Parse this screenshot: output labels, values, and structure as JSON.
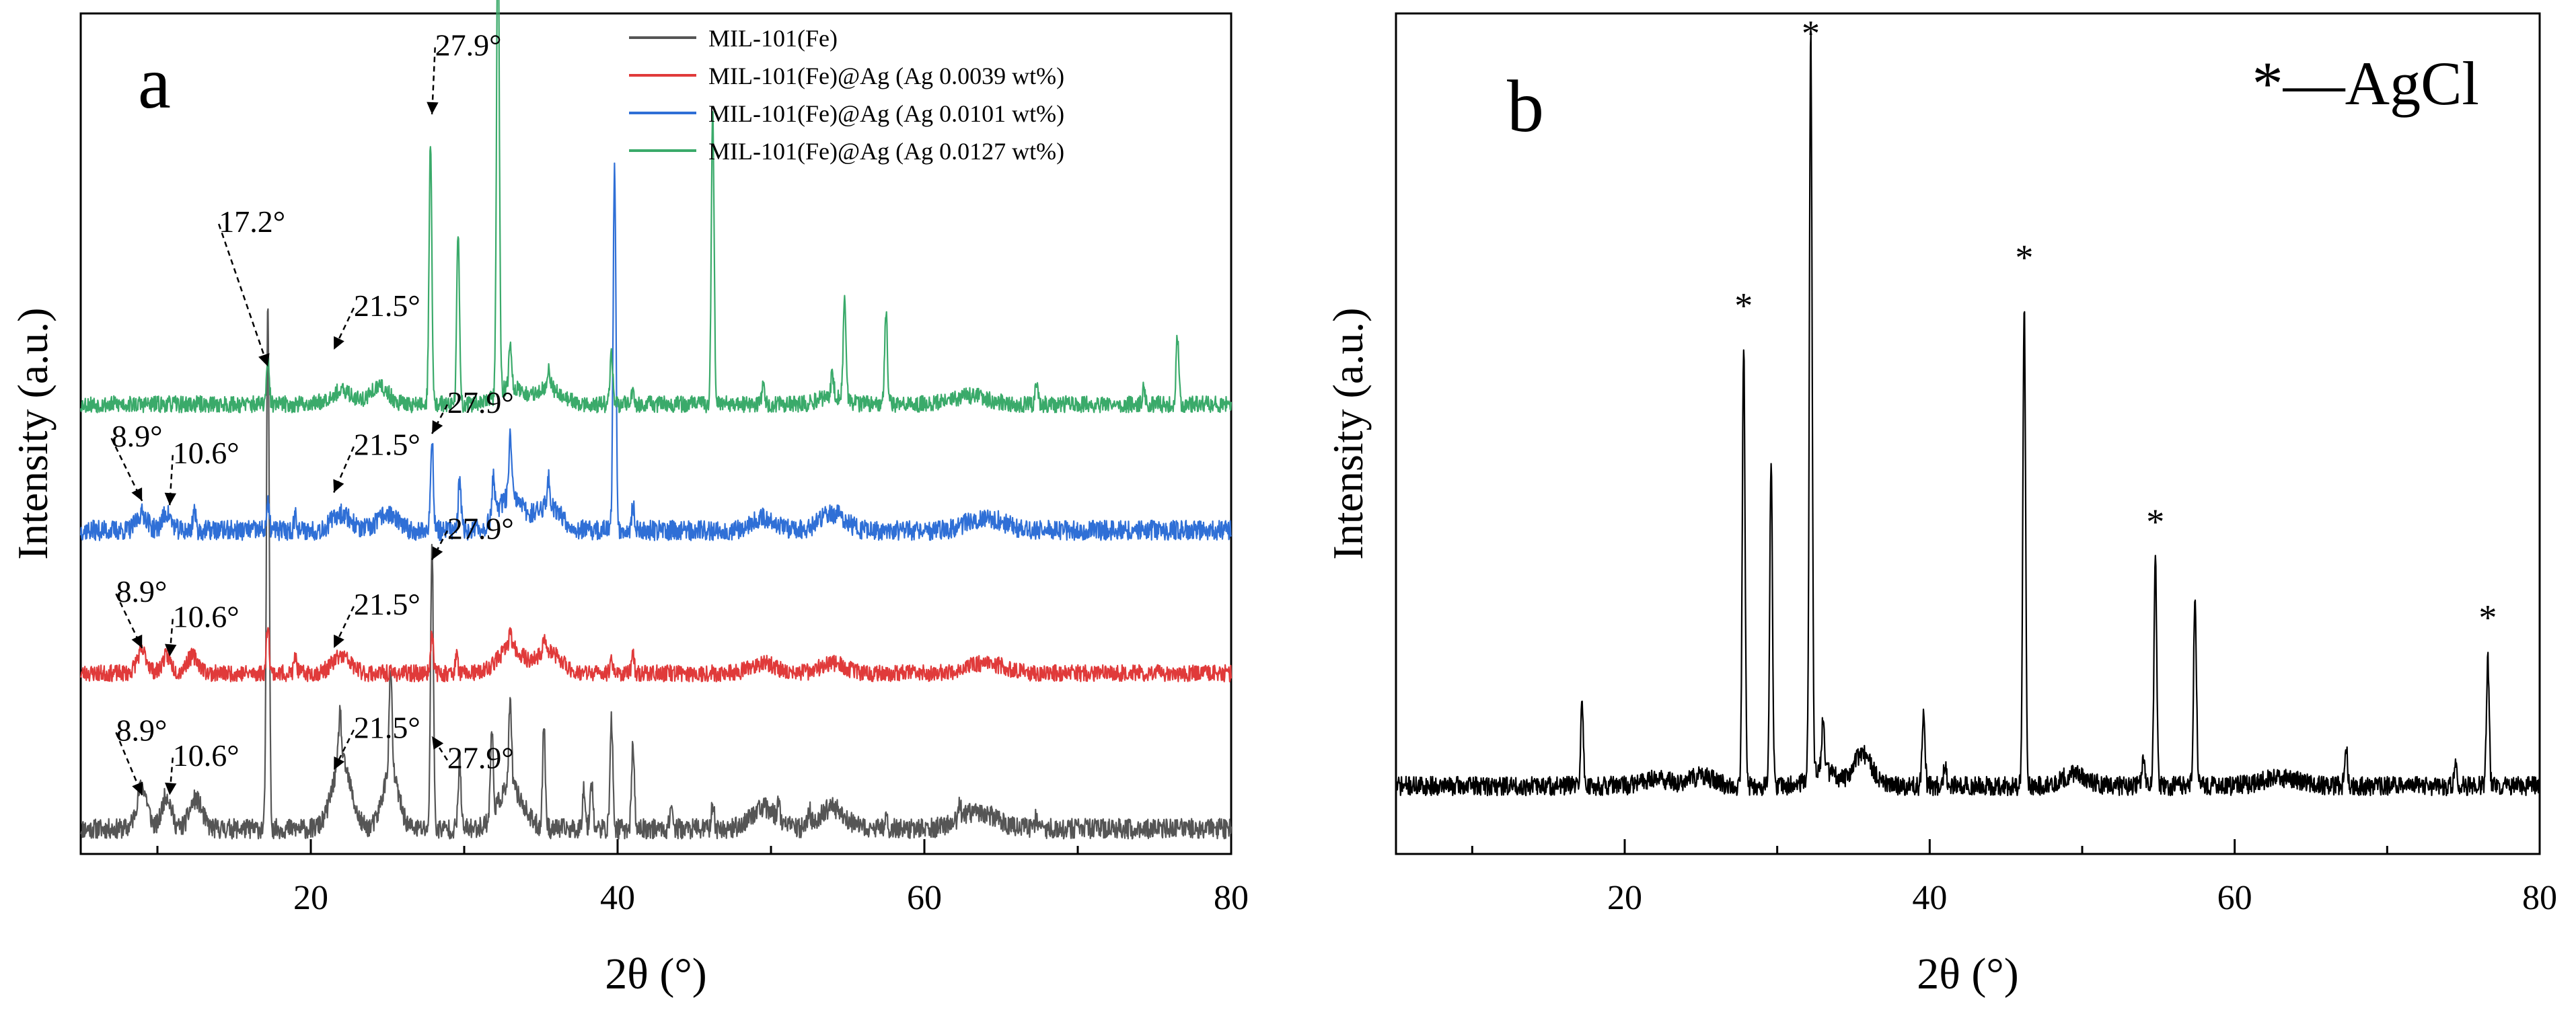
{
  "chart_data": [
    {
      "panel_label": "a",
      "type": "line",
      "title": "",
      "xlabel": "2θ (°)",
      "ylabel": "Intensity (a.u.)",
      "xlim": [
        5,
        80
      ],
      "x_ticks": [
        20,
        40,
        60,
        80
      ],
      "y_ticks": [],
      "legend_position": "top-center",
      "series": [
        {
          "name": "MIL-101(Fe)",
          "color": "#555555",
          "baseline": 0.03,
          "noise": 0.012,
          "seed": 11,
          "broad": [
            [
              9.0,
              0.05,
              0.35
            ],
            [
              10.6,
              0.04,
              0.3
            ],
            [
              12.5,
              0.035,
              0.4
            ],
            [
              22.0,
              0.08,
              0.6
            ],
            [
              25.2,
              0.07,
              0.5
            ],
            [
              33.0,
              0.05,
              0.8
            ],
            [
              49.5,
              0.025,
              0.8
            ],
            [
              54.0,
              0.025,
              0.8
            ],
            [
              63.5,
              0.02,
              1.2
            ]
          ],
          "peaks": [
            [
              17.2,
              0.62
            ],
            [
              21.9,
              0.06
            ],
            [
              25.2,
              0.12
            ],
            [
              27.9,
              0.34
            ],
            [
              29.7,
              0.08
            ],
            [
              31.8,
              0.1
            ],
            [
              33.0,
              0.1
            ],
            [
              35.2,
              0.12
            ],
            [
              37.8,
              0.05
            ],
            [
              38.3,
              0.06
            ],
            [
              39.6,
              0.13
            ],
            [
              41.0,
              0.1
            ],
            [
              43.5,
              0.03
            ],
            [
              46.2,
              0.03
            ],
            [
              50.5,
              0.02
            ],
            [
              52.5,
              0.02
            ],
            [
              57.5,
              0.02
            ],
            [
              62.3,
              0.015
            ],
            [
              67.3,
              0.015
            ]
          ]
        },
        {
          "name": "MIL-101(Fe)@Ag (Ag 0.0039 wt%)",
          "color": "#e03a3a",
          "baseline": 0.215,
          "noise": 0.01,
          "seed": 23,
          "broad": [
            [
              9.0,
              0.025,
              0.35
            ],
            [
              10.6,
              0.02,
              0.3
            ],
            [
              12.3,
              0.02,
              0.4
            ],
            [
              22.0,
              0.02,
              0.6
            ],
            [
              33.0,
              0.03,
              0.8
            ],
            [
              35.5,
              0.025,
              0.8
            ],
            [
              49.5,
              0.012,
              0.8
            ],
            [
              54.0,
              0.012,
              0.8
            ],
            [
              64.0,
              0.012,
              1.2
            ]
          ],
          "peaks": [
            [
              17.2,
              0.06
            ],
            [
              19.0,
              0.02
            ],
            [
              27.9,
              0.05
            ],
            [
              29.5,
              0.02
            ],
            [
              33.0,
              0.02
            ],
            [
              35.2,
              0.02
            ],
            [
              39.6,
              0.02
            ],
            [
              41.0,
              0.02
            ]
          ]
        },
        {
          "name": "MIL-101(Fe)@Ag (Ag 0.0101 wt%)",
          "color": "#2f6fd6",
          "baseline": 0.385,
          "noise": 0.012,
          "seed": 37,
          "broad": [
            [
              9.0,
              0.02,
              0.35
            ],
            [
              10.6,
              0.02,
              0.3
            ],
            [
              22.0,
              0.02,
              0.6
            ],
            [
              25.0,
              0.02,
              0.6
            ],
            [
              33.0,
              0.04,
              0.8
            ],
            [
              35.5,
              0.03,
              0.8
            ],
            [
              49.5,
              0.015,
              0.8
            ],
            [
              54.0,
              0.02,
              0.8
            ],
            [
              64.0,
              0.015,
              1.2
            ]
          ],
          "peaks": [
            [
              12.4,
              0.025
            ],
            [
              17.2,
              0.03
            ],
            [
              19.0,
              0.02
            ],
            [
              27.9,
              0.11
            ],
            [
              29.7,
              0.06
            ],
            [
              31.9,
              0.05
            ],
            [
              33.0,
              0.07
            ],
            [
              35.5,
              0.03
            ],
            [
              39.8,
              0.44
            ],
            [
              41.0,
              0.03
            ]
          ]
        },
        {
          "name": "MIL-101(Fe)@Ag (Ag 0.0127 wt%)",
          "color": "#3aaa6a",
          "baseline": 0.535,
          "noise": 0.01,
          "seed": 53,
          "broad": [
            [
              22.0,
              0.015,
              0.8
            ],
            [
              24.5,
              0.02,
              0.6
            ],
            [
              33.0,
              0.02,
              0.8
            ],
            [
              35.5,
              0.02,
              0.8
            ],
            [
              54.0,
              0.01,
              0.8
            ],
            [
              63.0,
              0.01,
              1.2
            ]
          ],
          "peaks": [
            [
              17.2,
              0.05
            ],
            [
              27.8,
              0.31
            ],
            [
              29.6,
              0.2
            ],
            [
              32.2,
              0.57
            ],
            [
              33.0,
              0.05
            ],
            [
              35.5,
              0.025
            ],
            [
              39.6,
              0.06
            ],
            [
              41.0,
              0.02
            ],
            [
              46.2,
              0.35
            ],
            [
              49.5,
              0.02
            ],
            [
              54.0,
              0.025
            ],
            [
              54.8,
              0.12
            ],
            [
              57.5,
              0.11
            ],
            [
              67.3,
              0.03
            ],
            [
              74.3,
              0.02
            ],
            [
              76.5,
              0.08
            ]
          ]
        }
      ],
      "annotations": [
        {
          "text": "27.9°",
          "x": 28.1,
          "y": 0.95,
          "ax": 27.9,
          "ay": 0.88
        },
        {
          "text": "17.2°",
          "x": 14.0,
          "y": 0.74,
          "ax": 17.2,
          "ay": 0.58
        },
        {
          "text": "21.5°",
          "x": 22.8,
          "y": 0.64,
          "ax": 21.5,
          "ay": 0.6
        },
        {
          "text": "8.9°",
          "x": 7.0,
          "y": 0.485,
          "ax": 9.0,
          "ay": 0.42
        },
        {
          "text": "10.6°",
          "x": 11.0,
          "y": 0.465,
          "ax": 10.8,
          "ay": 0.415
        },
        {
          "text": "21.5°",
          "x": 22.8,
          "y": 0.475,
          "ax": 21.5,
          "ay": 0.43
        },
        {
          "text": "27.9°",
          "x": 28.9,
          "y": 0.525,
          "ax": 27.9,
          "ay": 0.5
        },
        {
          "text": "8.9°",
          "x": 7.3,
          "y": 0.3,
          "ax": 9.0,
          "ay": 0.245
        },
        {
          "text": "10.6°",
          "x": 11.0,
          "y": 0.27,
          "ax": 10.8,
          "ay": 0.235
        },
        {
          "text": "21.5°",
          "x": 22.8,
          "y": 0.285,
          "ax": 21.5,
          "ay": 0.245
        },
        {
          "text": "27.9°",
          "x": 28.9,
          "y": 0.375,
          "ax": 27.9,
          "ay": 0.35
        },
        {
          "text": "8.9°",
          "x": 7.3,
          "y": 0.135,
          "ax": 9.0,
          "ay": 0.07
        },
        {
          "text": "10.6°",
          "x": 11.0,
          "y": 0.105,
          "ax": 10.8,
          "ay": 0.07
        },
        {
          "text": "21.5°",
          "x": 22.8,
          "y": 0.138,
          "ax": 21.5,
          "ay": 0.1
        },
        {
          "text": "27.9°",
          "x": 28.9,
          "y": 0.102,
          "ax": 27.9,
          "ay": 0.14
        }
      ]
    },
    {
      "panel_label": "b",
      "type": "line",
      "title": "",
      "xlabel": "2θ (°)",
      "ylabel": "Intensity (a.u.)",
      "xlim": [
        5,
        80
      ],
      "x_ticks": [
        20,
        40,
        60,
        80
      ],
      "y_ticks": [],
      "legend_text": "*—AgCl",
      "series": [
        {
          "name": "AgCl pattern",
          "color": "#000000",
          "baseline": 0.085,
          "noise": 0.012,
          "seed": 71,
          "broad": [
            [
              22.0,
              0.01,
              0.8
            ],
            [
              25.0,
              0.012,
              0.8
            ],
            [
              33.0,
              0.02,
              0.8
            ],
            [
              35.6,
              0.04,
              0.6
            ],
            [
              49.5,
              0.015,
              0.8
            ],
            [
              63.0,
              0.01,
              1.2
            ]
          ],
          "peaks": [
            [
              17.2,
              0.1
            ],
            [
              27.8,
              0.55
            ],
            [
              29.6,
              0.4
            ],
            [
              32.2,
              0.93
            ],
            [
              33.0,
              0.06
            ],
            [
              39.6,
              0.1
            ],
            [
              41.0,
              0.03
            ],
            [
              46.2,
              0.6
            ],
            [
              54.0,
              0.03
            ],
            [
              54.8,
              0.28
            ],
            [
              57.4,
              0.24
            ],
            [
              67.3,
              0.05
            ],
            [
              74.5,
              0.03
            ],
            [
              76.6,
              0.16
            ]
          ]
        }
      ],
      "markers": [
        {
          "text": "*",
          "x": 27.8,
          "y": 0.67
        },
        {
          "text": "*",
          "x": 32.2,
          "y": 1.01
        },
        {
          "text": "*",
          "x": 46.2,
          "y": 0.73
        },
        {
          "text": "*",
          "x": 54.8,
          "y": 0.4
        },
        {
          "text": "*",
          "x": 76.6,
          "y": 0.28
        }
      ]
    }
  ]
}
